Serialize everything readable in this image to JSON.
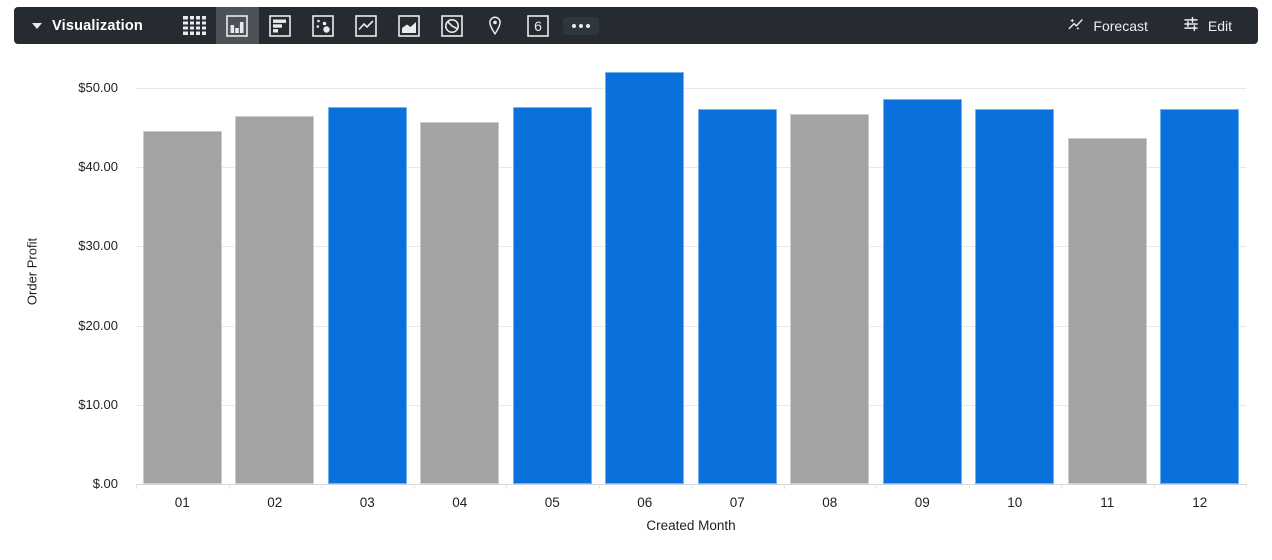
{
  "toolbar": {
    "title": "Visualization",
    "icons": [
      {
        "name": "table-chart-icon",
        "selected": false
      },
      {
        "name": "column-chart-icon",
        "selected": true
      },
      {
        "name": "bar-chart-icon",
        "selected": false
      },
      {
        "name": "scatter-chart-icon",
        "selected": false
      },
      {
        "name": "line-chart-icon",
        "selected": false
      },
      {
        "name": "area-chart-icon",
        "selected": false
      },
      {
        "name": "pie-chart-icon",
        "selected": false
      },
      {
        "name": "map-pin-icon",
        "selected": false
      },
      {
        "name": "single-value-icon",
        "selected": false,
        "label": "6"
      },
      {
        "name": "more-options-icon",
        "selected": false
      }
    ],
    "forecast_label": "Forecast",
    "edit_label": "Edit"
  },
  "chart_data": {
    "type": "bar",
    "title": "",
    "xlabel": "Created Month",
    "ylabel": "Order Profit",
    "categories": [
      "01",
      "02",
      "03",
      "04",
      "05",
      "06",
      "07",
      "08",
      "09",
      "10",
      "11",
      "12"
    ],
    "values": [
      44.6,
      46.5,
      47.6,
      45.7,
      47.6,
      52.0,
      47.3,
      46.7,
      48.6,
      47.3,
      43.7,
      47.3
    ],
    "bar_color_keys": [
      "gray",
      "gray",
      "blue",
      "gray",
      "blue",
      "blue",
      "blue",
      "gray",
      "blue",
      "blue",
      "gray",
      "blue"
    ],
    "colors": {
      "blue": "#0a70dc",
      "gray": "#a3a3a4"
    },
    "ylim": [
      0,
      55
    ],
    "yticks": [
      {
        "value": 0,
        "label": "$.00"
      },
      {
        "value": 10,
        "label": "$10.00"
      },
      {
        "value": 20,
        "label": "$20.00"
      },
      {
        "value": 30,
        "label": "$30.00"
      },
      {
        "value": 40,
        "label": "$40.00"
      },
      {
        "value": 50,
        "label": "$50.00"
      }
    ],
    "grid": true,
    "legend": "none"
  }
}
